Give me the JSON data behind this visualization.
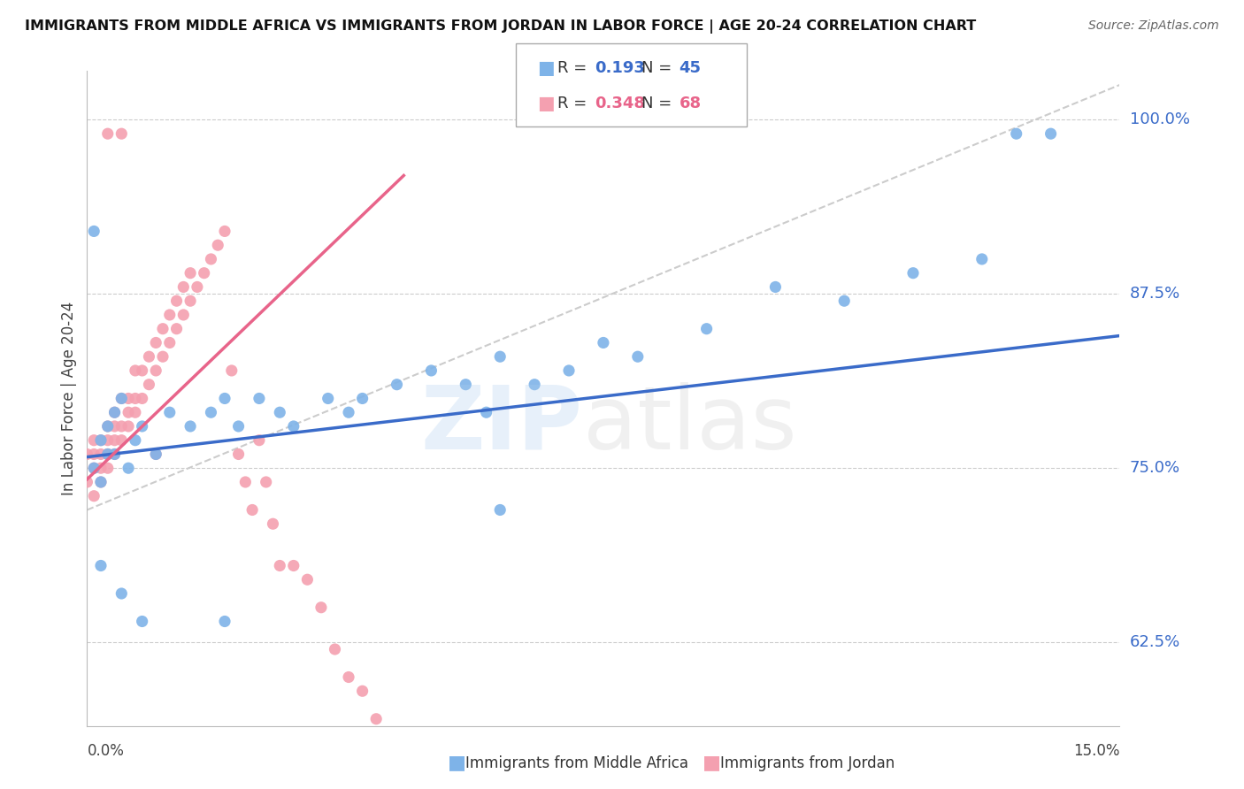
{
  "title": "IMMIGRANTS FROM MIDDLE AFRICA VS IMMIGRANTS FROM JORDAN IN LABOR FORCE | AGE 20-24 CORRELATION CHART",
  "source": "Source: ZipAtlas.com",
  "ylabel": "In Labor Force | Age 20-24",
  "ytick_labels": [
    "100.0%",
    "87.5%",
    "75.0%",
    "62.5%"
  ],
  "ytick_values": [
    1.0,
    0.875,
    0.75,
    0.625
  ],
  "xlim": [
    0.0,
    0.15
  ],
  "ylim": [
    0.565,
    1.035
  ],
  "blue_R": 0.193,
  "blue_N": 45,
  "pink_R": 0.348,
  "pink_N": 68,
  "blue_color": "#7EB3E8",
  "pink_color": "#F4A0B0",
  "blue_line_color": "#3A6BC9",
  "pink_line_color": "#E8648A",
  "dashed_line_color": "#CCCCCC",
  "blue_scatter_x": [
    0.002,
    0.003,
    0.004,
    0.001,
    0.003,
    0.005,
    0.002,
    0.004,
    0.001,
    0.006,
    0.007,
    0.008,
    0.01,
    0.012,
    0.015,
    0.018,
    0.02,
    0.022,
    0.025,
    0.028,
    0.03,
    0.035,
    0.038,
    0.04,
    0.045,
    0.05,
    0.055,
    0.058,
    0.06,
    0.065,
    0.07,
    0.075,
    0.08,
    0.09,
    0.1,
    0.11,
    0.12,
    0.13,
    0.135,
    0.14,
    0.002,
    0.005,
    0.008,
    0.02,
    0.06
  ],
  "blue_scatter_y": [
    0.77,
    0.76,
    0.79,
    0.75,
    0.78,
    0.8,
    0.74,
    0.76,
    0.92,
    0.75,
    0.77,
    0.78,
    0.76,
    0.79,
    0.78,
    0.79,
    0.8,
    0.78,
    0.8,
    0.79,
    0.78,
    0.8,
    0.79,
    0.8,
    0.81,
    0.82,
    0.81,
    0.79,
    0.83,
    0.81,
    0.82,
    0.84,
    0.83,
    0.85,
    0.88,
    0.87,
    0.89,
    0.9,
    0.99,
    0.99,
    0.68,
    0.66,
    0.64,
    0.64,
    0.72
  ],
  "pink_scatter_x": [
    0.0,
    0.0,
    0.001,
    0.001,
    0.001,
    0.001,
    0.002,
    0.002,
    0.002,
    0.002,
    0.003,
    0.003,
    0.003,
    0.003,
    0.003,
    0.004,
    0.004,
    0.004,
    0.004,
    0.005,
    0.005,
    0.005,
    0.006,
    0.006,
    0.006,
    0.007,
    0.007,
    0.007,
    0.008,
    0.008,
    0.009,
    0.009,
    0.01,
    0.01,
    0.01,
    0.011,
    0.011,
    0.012,
    0.012,
    0.013,
    0.013,
    0.014,
    0.014,
    0.015,
    0.015,
    0.016,
    0.017,
    0.018,
    0.019,
    0.02,
    0.021,
    0.022,
    0.023,
    0.024,
    0.025,
    0.026,
    0.027,
    0.028,
    0.03,
    0.032,
    0.034,
    0.036,
    0.038,
    0.04,
    0.042,
    0.044,
    0.003,
    0.005
  ],
  "pink_scatter_y": [
    0.76,
    0.74,
    0.75,
    0.77,
    0.73,
    0.76,
    0.76,
    0.75,
    0.77,
    0.74,
    0.76,
    0.77,
    0.78,
    0.75,
    0.76,
    0.77,
    0.79,
    0.78,
    0.76,
    0.78,
    0.8,
    0.77,
    0.79,
    0.8,
    0.78,
    0.8,
    0.82,
    0.79,
    0.8,
    0.82,
    0.81,
    0.83,
    0.82,
    0.84,
    0.76,
    0.83,
    0.85,
    0.84,
    0.86,
    0.85,
    0.87,
    0.86,
    0.88,
    0.87,
    0.89,
    0.88,
    0.89,
    0.9,
    0.91,
    0.92,
    0.82,
    0.76,
    0.74,
    0.72,
    0.77,
    0.74,
    0.71,
    0.68,
    0.68,
    0.67,
    0.65,
    0.62,
    0.6,
    0.59,
    0.57,
    0.56,
    0.99,
    0.99
  ],
  "blue_line_x": [
    0.0,
    0.15
  ],
  "blue_line_y": [
    0.758,
    0.845
  ],
  "pink_line_x": [
    0.0,
    0.046
  ],
  "pink_line_y": [
    0.742,
    0.96
  ],
  "dash_line_x": [
    0.0,
    0.15
  ],
  "dash_line_y": [
    0.72,
    1.025
  ]
}
